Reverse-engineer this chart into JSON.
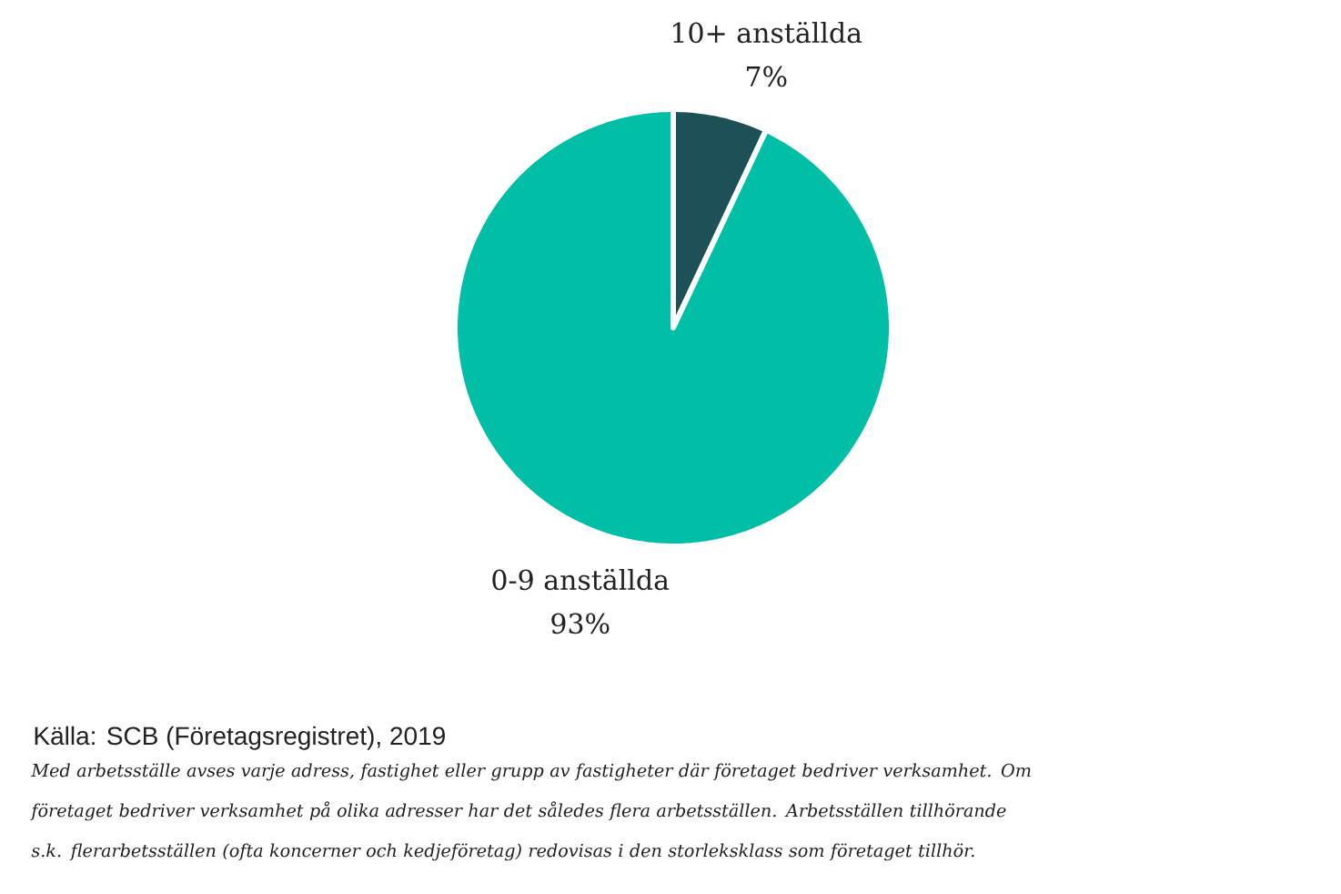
{
  "chart_data": {
    "type": "pie",
    "categories": [
      "10+ anställda",
      "0-9 anställda"
    ],
    "values": [
      7,
      93
    ],
    "colors": [
      "#1d5157",
      "#00bfa6"
    ],
    "value_labels": [
      "7%",
      "93%"
    ],
    "annotations": [
      "Källa: SCB (Företagsregistret), 2019",
      "Med arbetsställe avses varje adress, fastighet eller grupp av fastigheter där företaget bedriver verksamhet. Om företaget bedriver verksamhet på olika adresser har det således flera arbetsställen. Arbetsställen tillhörande s.k. flerarbetsställen (ofta koncerner och kedjeföretag) redovisas i den storleksklass som företaget tillhör."
    ]
  }
}
